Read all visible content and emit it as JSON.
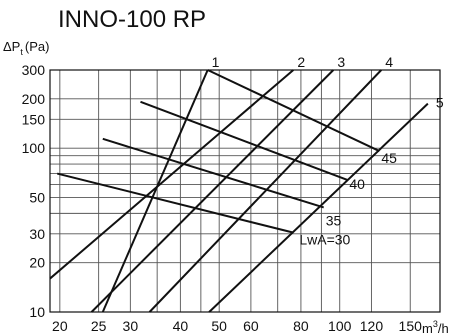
{
  "chart_data": {
    "type": "line",
    "title": "INNO-100 RP",
    "ylabel": {
      "main": "ΔP",
      "sub": "t",
      "unit": "(Pa)"
    },
    "xlabel": {
      "main": "m",
      "sup": "3",
      "unit": "/h"
    },
    "xscale": "log",
    "yscale": "log",
    "xlim": [
      18.9,
      178
    ],
    "ylim": [
      10,
      300
    ],
    "grid": true,
    "x_ticks": [
      20,
      25,
      30,
      40,
      50,
      60,
      80,
      100,
      120,
      150
    ],
    "x_tick_labels": [
      "20",
      "25",
      "30",
      "40",
      "50",
      "60",
      "80",
      "100",
      "120",
      "150"
    ],
    "x_grid": [
      20,
      25,
      30,
      35,
      40,
      45,
      50,
      60,
      70,
      80,
      90,
      100,
      120,
      150
    ],
    "y_ticks": [
      10,
      20,
      30,
      50,
      100,
      150,
      200,
      300
    ],
    "y_tick_labels": [
      "10",
      "20",
      "30",
      "50",
      "100",
      "150",
      "200",
      "300"
    ],
    "y_grid": [
      10,
      20,
      30,
      40,
      50,
      60,
      70,
      80,
      90,
      100,
      150,
      200,
      300
    ],
    "series": [
      {
        "name": "1",
        "points": [
          [
            25.6,
            10
          ],
          [
            46.8,
            300
          ]
        ]
      },
      {
        "name": "2",
        "points": [
          [
            18.9,
            16
          ],
          [
            76.6,
            300
          ]
        ]
      },
      {
        "name": "3",
        "points": [
          [
            24,
            10
          ],
          [
            96.4,
            300
          ]
        ]
      },
      {
        "name": "4",
        "points": [
          [
            33.5,
            10
          ],
          [
            127,
            300
          ]
        ]
      },
      {
        "name": "5",
        "points": [
          [
            47.2,
            10
          ],
          [
            166,
            187
          ]
        ]
      }
    ],
    "noise_series": [
      {
        "name": "LwA=30",
        "points": [
          [
            19.7,
            70
          ],
          [
            76.6,
            30.5
          ]
        ]
      },
      {
        "name": "35",
        "points": [
          [
            25.6,
            114
          ],
          [
            91.2,
            43.5
          ]
        ]
      },
      {
        "name": "40",
        "points": [
          [
            31.8,
            192
          ],
          [
            104.5,
            64
          ]
        ]
      },
      {
        "name": "45",
        "points": [
          [
            46.8,
            300
          ],
          [
            125.6,
            96
          ]
        ]
      }
    ]
  }
}
